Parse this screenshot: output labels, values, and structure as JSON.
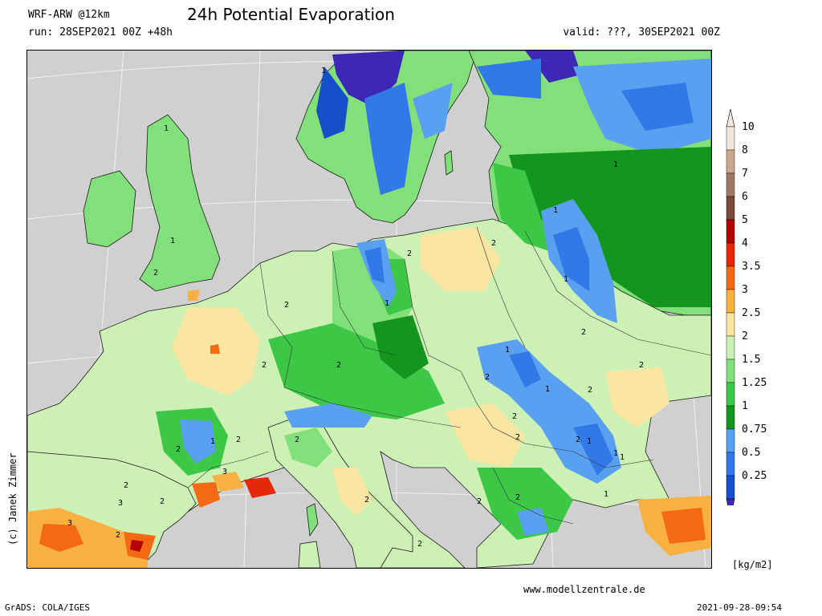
{
  "header": {
    "model": "WRF-ARW @12km",
    "title": "24h Potential Evaporation",
    "run": "run: 28SEP2021 00Z +48h",
    "valid": "valid: ???, 30SEP2021 00Z"
  },
  "footer": {
    "copyright": "(c) Janek Zimmer",
    "website": "www.modellzentrale.de",
    "software": "GrADS: COLA/IGES",
    "timestamp": "2021-09-28-09:54"
  },
  "legend": {
    "unit": "[kg/m2]",
    "levels": [
      {
        "label": "10",
        "color": "#f2e6dc"
      },
      {
        "label": "8",
        "color": "#c8a890"
      },
      {
        "label": "7",
        "color": "#a0786a"
      },
      {
        "label": "6",
        "color": "#7a4a3a"
      },
      {
        "label": "5",
        "color": "#b40000"
      },
      {
        "label": "4",
        "color": "#e62808"
      },
      {
        "label": "3.5",
        "color": "#f46a14"
      },
      {
        "label": "3",
        "color": "#f8b040"
      },
      {
        "label": "2.5",
        "color": "#fae6a0"
      },
      {
        "label": "2",
        "color": "#cdf0b4"
      },
      {
        "label": "1.5",
        "color": "#82e07a"
      },
      {
        "label": "1.25",
        "color": "#3cc846"
      },
      {
        "label": "1",
        "color": "#14961e"
      },
      {
        "label": "0.75",
        "color": "#5aa0f0"
      },
      {
        "label": "0.5",
        "color": "#3278e6"
      },
      {
        "label": "0.25",
        "color": "#1450c8"
      }
    ],
    "below_color": "#3c28b4"
  },
  "map": {
    "sea_color": "#d0d0d0",
    "contour_labels": [
      "1",
      "1",
      "1",
      "1",
      "1",
      "1",
      "1",
      "1",
      "1",
      "1",
      "1",
      "1",
      "1",
      "1",
      "2",
      "2",
      "2",
      "2",
      "2",
      "2",
      "2",
      "2",
      "2",
      "2",
      "2",
      "2",
      "2",
      "2",
      "2",
      "2",
      "2",
      "2",
      "2",
      "2",
      "2",
      "2",
      "2",
      "3",
      "3",
      "3"
    ]
  }
}
